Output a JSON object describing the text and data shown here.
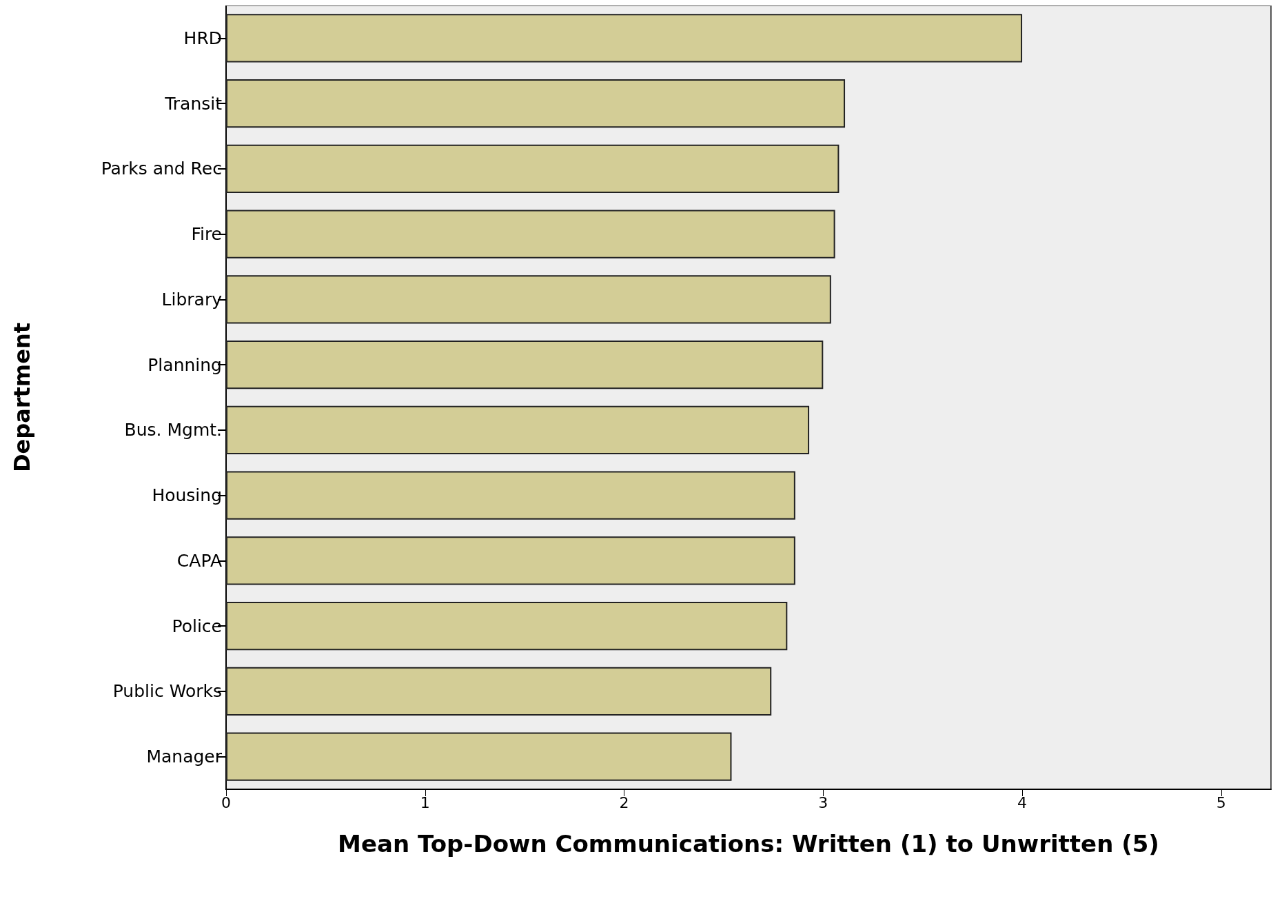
{
  "chart_data": {
    "type": "bar",
    "orientation": "horizontal",
    "xlabel": "Mean Top-Down Communications: Written (1) to Unwritten (5)",
    "ylabel": "Department",
    "categories": [
      "HRD",
      "Transit",
      "Parks and Rec",
      "Fire",
      "Library",
      "Planning",
      "Bus. Mgmt.",
      "Housing",
      "CAPA",
      "Police",
      "Public Works",
      "Manager"
    ],
    "values": [
      4.0,
      3.11,
      3.08,
      3.06,
      3.04,
      3.0,
      2.93,
      2.86,
      2.86,
      2.82,
      2.74,
      2.54
    ],
    "color": "#d3cd96",
    "xlim": [
      0,
      5.25
    ],
    "xticks": [
      0,
      1,
      2,
      3,
      4,
      5
    ],
    "grid": false
  }
}
